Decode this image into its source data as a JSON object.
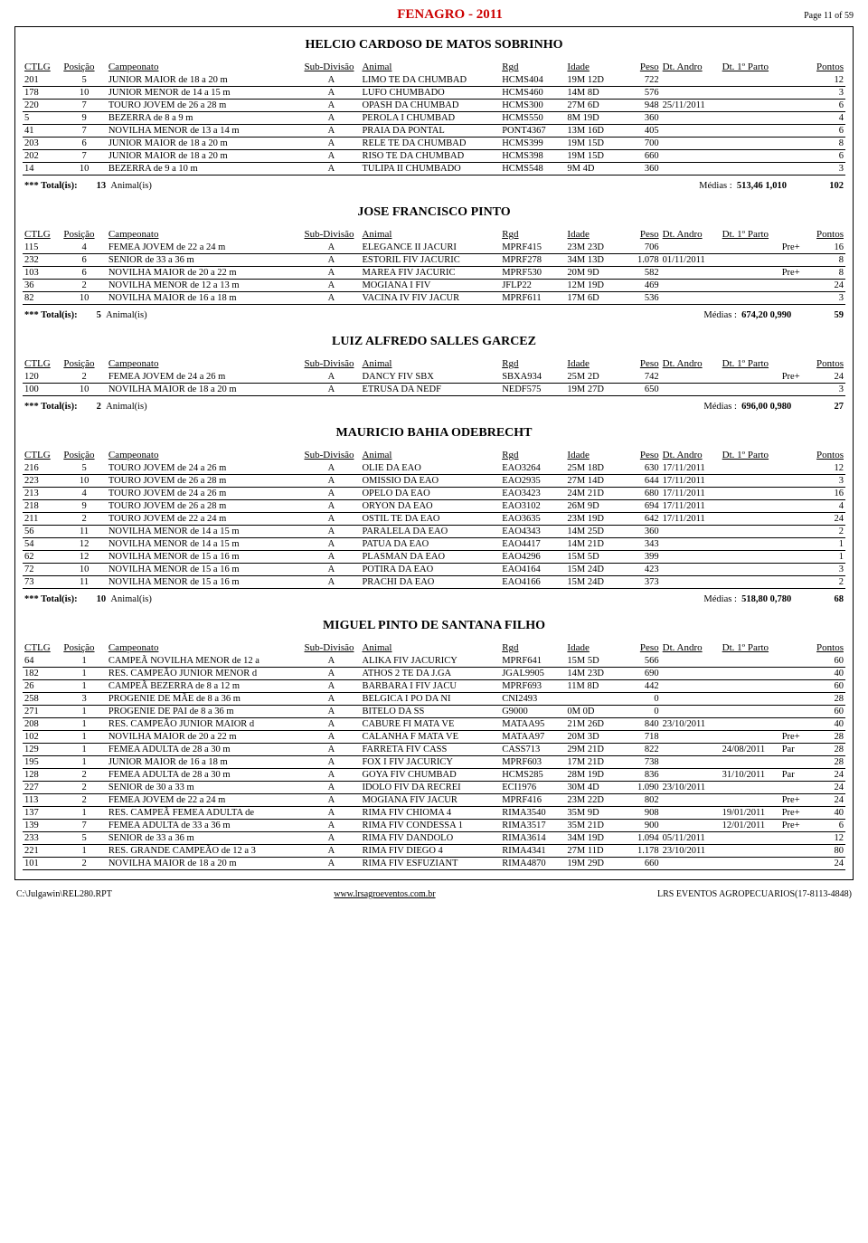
{
  "doc_title": "FENAGRO - 2011",
  "page_label": "Page 11 of 59",
  "headers": {
    "ctlg": "CTLG",
    "pos": "Posição",
    "camp": "Campeonato",
    "sub": "Sub-Divisão",
    "animal": "Animal",
    "rgd": "Rgd",
    "idade": "Idade",
    "peso": "Peso",
    "andro": "Dt. Andro",
    "parto": "Dt. 1º Parto",
    "pontos": "Pontos"
  },
  "totals_labels": {
    "prefix": "*** Total(is):",
    "animals": "Animal(is)",
    "medias": "Médias :"
  },
  "owners": [
    {
      "name": "HELCIO CARDOSO DE MATOS SOBRINHO",
      "rows": [
        {
          "ctlg": "201",
          "pos": "5",
          "camp": "JUNIOR MAIOR de 18 a 20 m",
          "sub": "A",
          "animal": "LIMO TE DA CHUMBAD",
          "rgd": "HCMS404",
          "idade": "19M 12D",
          "peso": "722",
          "andro": "",
          "parto": "",
          "extra": "",
          "pontos": "12"
        },
        {
          "ctlg": "178",
          "pos": "10",
          "camp": "JUNIOR MENOR de 14 a 15 m",
          "sub": "A",
          "animal": "LUFO CHUMBADO",
          "rgd": "HCMS460",
          "idade": "14M 8D",
          "peso": "576",
          "andro": "",
          "parto": "",
          "extra": "",
          "pontos": "3"
        },
        {
          "ctlg": "220",
          "pos": "7",
          "camp": "TOURO JOVEM de 26 a 28 m",
          "sub": "A",
          "animal": "OPASH DA CHUMBAD",
          "rgd": "HCMS300",
          "idade": "27M 6D",
          "peso": "948",
          "andro": "25/11/2011",
          "parto": "",
          "extra": "",
          "pontos": "6"
        },
        {
          "ctlg": "5",
          "pos": "9",
          "camp": "BEZERRA de 8 a 9 m",
          "sub": "A",
          "animal": "PEROLA I CHUMBAD",
          "rgd": "HCMS550",
          "idade": "8M 19D",
          "peso": "360",
          "andro": "",
          "parto": "",
          "extra": "",
          "pontos": "4"
        },
        {
          "ctlg": "41",
          "pos": "7",
          "camp": "NOVILHA MENOR de 13 a 14 m",
          "sub": "A",
          "animal": "PRAIA DA PONTAL",
          "rgd": "PONT4367",
          "idade": "13M 16D",
          "peso": "405",
          "andro": "",
          "parto": "",
          "extra": "",
          "pontos": "6"
        },
        {
          "ctlg": "203",
          "pos": "6",
          "camp": "JUNIOR MAIOR de 18 a 20 m",
          "sub": "A",
          "animal": "RELE TE DA CHUMBAD",
          "rgd": "HCMS399",
          "idade": "19M 15D",
          "peso": "700",
          "andro": "",
          "parto": "",
          "extra": "",
          "pontos": "8"
        },
        {
          "ctlg": "202",
          "pos": "7",
          "camp": "JUNIOR MAIOR de 18 a 20 m",
          "sub": "A",
          "animal": "RISO TE DA CHUMBAD",
          "rgd": "HCMS398",
          "idade": "19M 15D",
          "peso": "660",
          "andro": "",
          "parto": "",
          "extra": "",
          "pontos": "6"
        },
        {
          "ctlg": "14",
          "pos": "10",
          "camp": "BEZERRA de 9 a 10 m",
          "sub": "A",
          "animal": "TULIPA II CHUMBADO",
          "rgd": "HCMS548",
          "idade": "9M 4D",
          "peso": "360",
          "andro": "",
          "parto": "",
          "extra": "",
          "pontos": "3"
        }
      ],
      "totals": {
        "count": "13",
        "media": "513,46",
        "ratio": "1,010",
        "pts": "102"
      }
    },
    {
      "name": "JOSE FRANCISCO PINTO",
      "rows": [
        {
          "ctlg": "115",
          "pos": "4",
          "camp": "FEMEA JOVEM de 22 a 24 m",
          "sub": "A",
          "animal": "ELEGANCE II JACURI",
          "rgd": "MPRF415",
          "idade": "23M 23D",
          "peso": "706",
          "andro": "",
          "parto": "",
          "extra": "Pre+",
          "pontos": "16"
        },
        {
          "ctlg": "232",
          "pos": "6",
          "camp": "SENIOR de 33 a 36 m",
          "sub": "A",
          "animal": "ESTORIL FIV JACURIC",
          "rgd": "MPRF278",
          "idade": "34M 13D",
          "peso": "1.078",
          "andro": "01/11/2011",
          "parto": "",
          "extra": "",
          "pontos": "8"
        },
        {
          "ctlg": "103",
          "pos": "6",
          "camp": "NOVILHA MAIOR de 20 a 22 m",
          "sub": "A",
          "animal": "MAREA FIV JACURIC",
          "rgd": "MPRF530",
          "idade": "20M 9D",
          "peso": "582",
          "andro": "",
          "parto": "",
          "extra": "Pre+",
          "pontos": "8"
        },
        {
          "ctlg": "36",
          "pos": "2",
          "camp": "NOVILHA MENOR de 12 a 13 m",
          "sub": "A",
          "animal": "MOGIANA I FIV",
          "rgd": "JFLP22",
          "idade": "12M 19D",
          "peso": "469",
          "andro": "",
          "parto": "",
          "extra": "",
          "pontos": "24"
        },
        {
          "ctlg": "82",
          "pos": "10",
          "camp": "NOVILHA MAIOR de 16 a 18 m",
          "sub": "A",
          "animal": "VACINA IV FIV JACUR",
          "rgd": "MPRF611",
          "idade": "17M 6D",
          "peso": "536",
          "andro": "",
          "parto": "",
          "extra": "",
          "pontos": "3"
        }
      ],
      "totals": {
        "count": "5",
        "media": "674,20",
        "ratio": "0,990",
        "pts": "59"
      }
    },
    {
      "name": "LUIZ ALFREDO SALLES GARCEZ",
      "rows": [
        {
          "ctlg": "120",
          "pos": "2",
          "camp": "FEMEA JOVEM de 24 a 26 m",
          "sub": "A",
          "animal": "DANCY FIV SBX",
          "rgd": "SBXA934",
          "idade": "25M 2D",
          "peso": "742",
          "andro": "",
          "parto": "",
          "extra": "Pre+",
          "pontos": "24"
        },
        {
          "ctlg": "100",
          "pos": "10",
          "camp": "NOVILHA MAIOR de 18 a 20 m",
          "sub": "A",
          "animal": "ETRUSA DA NEDF",
          "rgd": "NEDF575",
          "idade": "19M 27D",
          "peso": "650",
          "andro": "",
          "parto": "",
          "extra": "",
          "pontos": "3"
        }
      ],
      "totals": {
        "count": "2",
        "media": "696,00",
        "ratio": "0,980",
        "pts": "27"
      }
    },
    {
      "name": "MAURICIO BAHIA ODEBRECHT",
      "rows": [
        {
          "ctlg": "216",
          "pos": "5",
          "camp": "TOURO JOVEM de 24 a 26 m",
          "sub": "A",
          "animal": "OLIE DA EAO",
          "rgd": "EAO3264",
          "idade": "25M 18D",
          "peso": "630",
          "andro": "17/11/2011",
          "parto": "",
          "extra": "",
          "pontos": "12"
        },
        {
          "ctlg": "223",
          "pos": "10",
          "camp": "TOURO JOVEM de 26 a 28 m",
          "sub": "A",
          "animal": "OMISSIO DA EAO",
          "rgd": "EAO2935",
          "idade": "27M 14D",
          "peso": "644",
          "andro": "17/11/2011",
          "parto": "",
          "extra": "",
          "pontos": "3"
        },
        {
          "ctlg": "213",
          "pos": "4",
          "camp": "TOURO JOVEM de 24 a 26 m",
          "sub": "A",
          "animal": "OPELO DA EAO",
          "rgd": "EAO3423",
          "idade": "24M 21D",
          "peso": "680",
          "andro": "17/11/2011",
          "parto": "",
          "extra": "",
          "pontos": "16"
        },
        {
          "ctlg": "218",
          "pos": "9",
          "camp": "TOURO JOVEM de 26 a 28 m",
          "sub": "A",
          "animal": "ORYON DA EAO",
          "rgd": "EAO3102",
          "idade": "26M 9D",
          "peso": "694",
          "andro": "17/11/2011",
          "parto": "",
          "extra": "",
          "pontos": "4"
        },
        {
          "ctlg": "211",
          "pos": "2",
          "camp": "TOURO JOVEM de 22 a 24 m",
          "sub": "A",
          "animal": "OSTIL TE DA EAO",
          "rgd": "EAO3635",
          "idade": "23M 19D",
          "peso": "642",
          "andro": "17/11/2011",
          "parto": "",
          "extra": "",
          "pontos": "24"
        },
        {
          "ctlg": "56",
          "pos": "11",
          "camp": "NOVILHA MENOR de 14 a 15 m",
          "sub": "A",
          "animal": "PARALELA DA EAO",
          "rgd": "EAO4343",
          "idade": "14M 25D",
          "peso": "360",
          "andro": "",
          "parto": "",
          "extra": "",
          "pontos": "2"
        },
        {
          "ctlg": "54",
          "pos": "12",
          "camp": "NOVILHA MENOR de 14 a 15 m",
          "sub": "A",
          "animal": "PATUA DA EAO",
          "rgd": "EAO4417",
          "idade": "14M 21D",
          "peso": "343",
          "andro": "",
          "parto": "",
          "extra": "",
          "pontos": "1"
        },
        {
          "ctlg": "62",
          "pos": "12",
          "camp": "NOVILHA MENOR de 15 a 16 m",
          "sub": "A",
          "animal": "PLASMAN DA EAO",
          "rgd": "EAO4296",
          "idade": "15M 5D",
          "peso": "399",
          "andro": "",
          "parto": "",
          "extra": "",
          "pontos": "1"
        },
        {
          "ctlg": "72",
          "pos": "10",
          "camp": "NOVILHA MENOR de 15 a 16 m",
          "sub": "A",
          "animal": "POTIRA DA EAO",
          "rgd": "EAO4164",
          "idade": "15M 24D",
          "peso": "423",
          "andro": "",
          "parto": "",
          "extra": "",
          "pontos": "3"
        },
        {
          "ctlg": "73",
          "pos": "11",
          "camp": "NOVILHA MENOR de 15 a 16 m",
          "sub": "A",
          "animal": "PRACHI DA EAO",
          "rgd": "EAO4166",
          "idade": "15M 24D",
          "peso": "373",
          "andro": "",
          "parto": "",
          "extra": "",
          "pontos": "2"
        }
      ],
      "totals": {
        "count": "10",
        "media": "518,80",
        "ratio": "0,780",
        "pts": "68"
      }
    },
    {
      "name": "MIGUEL PINTO DE SANTANA FILHO",
      "rows": [
        {
          "ctlg": "64",
          "pos": "1",
          "camp": "CAMPEÃ NOVILHA MENOR de 12 a",
          "sub": "A",
          "animal": "ALIKA FIV JACURICY",
          "rgd": "MPRF641",
          "idade": "15M 5D",
          "peso": "566",
          "andro": "",
          "parto": "",
          "extra": "",
          "pontos": "60"
        },
        {
          "ctlg": "182",
          "pos": "1",
          "camp": "RES. CAMPEÃO JUNIOR MENOR d",
          "sub": "A",
          "animal": "ATHOS 2 TE DA J.GA",
          "rgd": "JGAL9905",
          "idade": "14M 23D",
          "peso": "690",
          "andro": "",
          "parto": "",
          "extra": "",
          "pontos": "40"
        },
        {
          "ctlg": "26",
          "pos": "1",
          "camp": "CAMPEÃ BEZERRA de 8 a 12 m",
          "sub": "A",
          "animal": "BARBARA I FIV JACU",
          "rgd": "MPRF693",
          "idade": "11M 8D",
          "peso": "442",
          "andro": "",
          "parto": "",
          "extra": "",
          "pontos": "60"
        },
        {
          "ctlg": "258",
          "pos": "3",
          "camp": "PROGENIE DE MÃE de 8 a 36 m",
          "sub": "A",
          "animal": "BELGICA I PO DA NI",
          "rgd": "CNI2493",
          "idade": "",
          "peso": "0",
          "andro": "",
          "parto": "",
          "extra": "",
          "pontos": "28"
        },
        {
          "ctlg": "271",
          "pos": "1",
          "camp": "PROGENIE DE PAI de 8 a 36 m",
          "sub": "A",
          "animal": "BITELO DA SS",
          "rgd": "G9000",
          "idade": "0M 0D",
          "peso": "0",
          "andro": "",
          "parto": "",
          "extra": "",
          "pontos": "60"
        },
        {
          "ctlg": "208",
          "pos": "1",
          "camp": "RES. CAMPEÃO JUNIOR MAIOR d",
          "sub": "A",
          "animal": "CABURE FI MATA VE",
          "rgd": "MATAA95",
          "idade": "21M 26D",
          "peso": "840",
          "andro": "23/10/2011",
          "parto": "",
          "extra": "",
          "pontos": "40"
        },
        {
          "ctlg": "102",
          "pos": "1",
          "camp": "NOVILHA MAIOR de 20 a 22 m",
          "sub": "A",
          "animal": "CALANHA F MATA VE",
          "rgd": "MATAA97",
          "idade": "20M 3D",
          "peso": "718",
          "andro": "",
          "parto": "",
          "extra": "Pre+",
          "pontos": "28"
        },
        {
          "ctlg": "129",
          "pos": "1",
          "camp": "FEMEA ADULTA de 28 a 30 m",
          "sub": "A",
          "animal": "FARRETA FIV CASS",
          "rgd": "CASS713",
          "idade": "29M 21D",
          "peso": "822",
          "andro": "",
          "parto": "24/08/2011",
          "extra": "Par",
          "pontos": "28"
        },
        {
          "ctlg": "195",
          "pos": "1",
          "camp": "JUNIOR MAIOR de 16 a 18 m",
          "sub": "A",
          "animal": "FOX I FIV JACURICY",
          "rgd": "MPRF603",
          "idade": "17M 21D",
          "peso": "738",
          "andro": "",
          "parto": "",
          "extra": "",
          "pontos": "28"
        },
        {
          "ctlg": "128",
          "pos": "2",
          "camp": "FEMEA ADULTA de 28 a 30 m",
          "sub": "A",
          "animal": "GOYA FIV CHUMBAD",
          "rgd": "HCMS285",
          "idade": "28M 19D",
          "peso": "836",
          "andro": "",
          "parto": "31/10/2011",
          "extra": "Par",
          "pontos": "24"
        },
        {
          "ctlg": "227",
          "pos": "2",
          "camp": "SENIOR de 30 a 33 m",
          "sub": "A",
          "animal": "IDOLO FIV DA RECREI",
          "rgd": "ECI1976",
          "idade": "30M 4D",
          "peso": "1.090",
          "andro": "23/10/2011",
          "parto": "",
          "extra": "",
          "pontos": "24"
        },
        {
          "ctlg": "113",
          "pos": "2",
          "camp": "FEMEA JOVEM de 22 a 24 m",
          "sub": "A",
          "animal": "MOGIANA FIV JACUR",
          "rgd": "MPRF416",
          "idade": "23M 22D",
          "peso": "802",
          "andro": "",
          "parto": "",
          "extra": "Pre+",
          "pontos": "24"
        },
        {
          "ctlg": "137",
          "pos": "1",
          "camp": "RES. CAMPEÃ FEMEA ADULTA de",
          "sub": "A",
          "animal": "RIMA FIV CHIOMA 4",
          "rgd": "RIMA3540",
          "idade": "35M 9D",
          "peso": "908",
          "andro": "",
          "parto": "19/01/2011",
          "extra": "Pre+",
          "pontos": "40"
        },
        {
          "ctlg": "139",
          "pos": "7",
          "camp": "FEMEA ADULTA de 33 a 36 m",
          "sub": "A",
          "animal": "RIMA FIV CONDESSA 1",
          "rgd": "RIMA3517",
          "idade": "35M 21D",
          "peso": "900",
          "andro": "",
          "parto": "12/01/2011",
          "extra": "Pre+",
          "pontos": "6"
        },
        {
          "ctlg": "233",
          "pos": "5",
          "camp": "SENIOR de 33 a 36 m",
          "sub": "A",
          "animal": "RIMA FIV DANDOLO",
          "rgd": "RIMA3614",
          "idade": "34M 19D",
          "peso": "1.094",
          "andro": "05/11/2011",
          "parto": "",
          "extra": "",
          "pontos": "12"
        },
        {
          "ctlg": "221",
          "pos": "1",
          "camp": "RES. GRANDE CAMPEÃO de 12 a 3",
          "sub": "A",
          "animal": "RIMA FIV DIEGO 4",
          "rgd": "RIMA4341",
          "idade": "27M 11D",
          "peso": "1.178",
          "andro": "23/10/2011",
          "parto": "",
          "extra": "",
          "pontos": "80"
        },
        {
          "ctlg": "101",
          "pos": "2",
          "camp": "NOVILHA MAIOR de 18 a 20 m",
          "sub": "A",
          "animal": "RIMA FIV ESFUZIANT",
          "rgd": "RIMA4870",
          "idade": "19M 29D",
          "peso": "660",
          "andro": "",
          "parto": "",
          "extra": "",
          "pontos": "24"
        }
      ],
      "totals": null
    }
  ],
  "footer": {
    "left": "C:\\Julgawin\\REL280.RPT",
    "mid": "www.lrsagroeventos.com.br",
    "right": "LRS EVENTOS AGROPECUARIOS(17-8113-4848)"
  }
}
